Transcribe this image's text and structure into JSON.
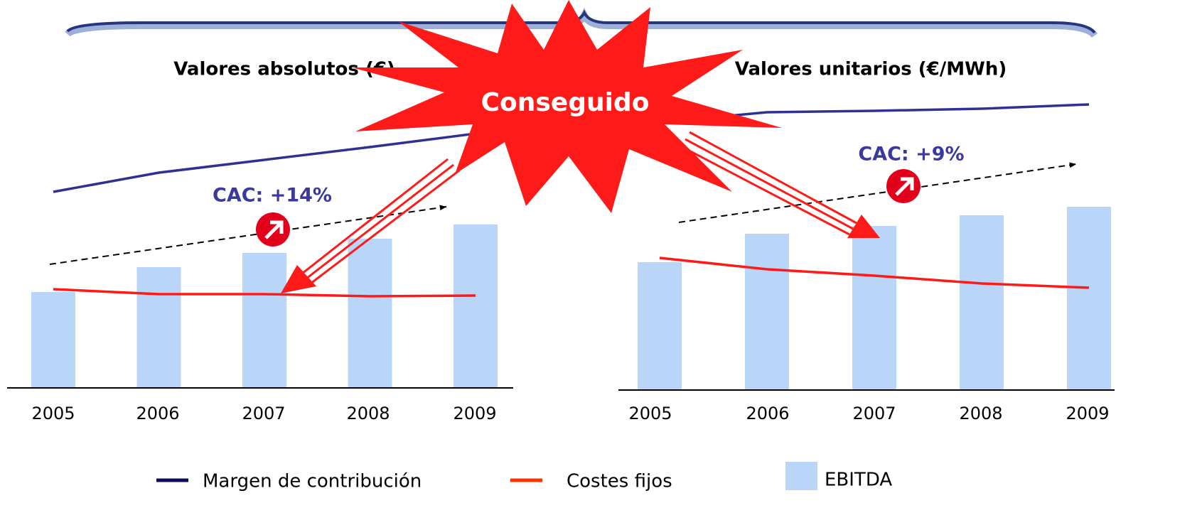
{
  "stamp": "Conseguido",
  "chart_data": [
    {
      "type": "combo",
      "title": "Valores absolutos (€)",
      "annotation": "CAC: +14%",
      "categories": [
        "2005",
        "2006",
        "2007",
        "2008",
        "2009"
      ],
      "ylim": [
        0,
        100
      ],
      "series": [
        {
          "name": "Margen de contribución",
          "type": "line",
          "color": "#2e3192",
          "values": [
            69,
            75.75,
            80.25,
            84.75,
            89.5
          ]
        },
        {
          "name": "Costes fijos",
          "type": "line",
          "color": "#ff1a1a",
          "values": [
            34.75,
            33,
            33,
            32.25,
            32.5
          ]
        },
        {
          "name": "EBITDA",
          "type": "bar",
          "color": "#b9d5f7",
          "values": [
            33.75,
            42.5,
            47.5,
            52.5,
            57.5
          ]
        }
      ]
    },
    {
      "type": "combo",
      "title": "Valores unitarios (€/MWh)",
      "annotation": "CAC: +9%",
      "categories": [
        "2005",
        "2006",
        "2007",
        "2008",
        "2009"
      ],
      "ylim": [
        0,
        105
      ],
      "series": [
        {
          "name": "Margen de contribución",
          "type": "line",
          "color": "#2e3192",
          "values": [
            94.25,
            97.75,
            98.25,
            99,
            100.5
          ]
        },
        {
          "name": "Costes fijos",
          "type": "line",
          "color": "#ff1a1a",
          "values": [
            46.5,
            42.5,
            40.25,
            37.5,
            36
          ]
        },
        {
          "name": "EBITDA",
          "type": "bar",
          "color": "#b9d5f7",
          "values": [
            45,
            55,
            57.75,
            61.5,
            64.5
          ]
        }
      ]
    }
  ]
}
